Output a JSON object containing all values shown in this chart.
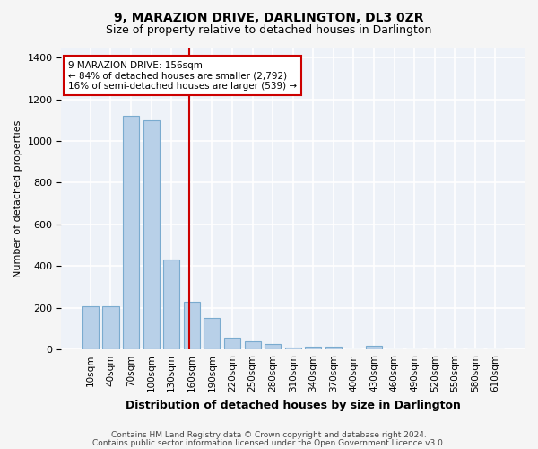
{
  "title": "9, MARAZION DRIVE, DARLINGTON, DL3 0ZR",
  "subtitle": "Size of property relative to detached houses in Darlington",
  "xlabel": "Distribution of detached houses by size in Darlington",
  "ylabel": "Number of detached properties",
  "bar_labels": [
    "10sqm",
    "40sqm",
    "70sqm",
    "100sqm",
    "130sqm",
    "160sqm",
    "190sqm",
    "220sqm",
    "250sqm",
    "280sqm",
    "310sqm",
    "340sqm",
    "370sqm",
    "400sqm",
    "430sqm",
    "460sqm",
    "490sqm",
    "520sqm",
    "550sqm",
    "580sqm",
    "610sqm"
  ],
  "bar_values": [
    207,
    207,
    1120,
    1100,
    430,
    230,
    150,
    58,
    40,
    25,
    10,
    15,
    15,
    0,
    20,
    0,
    0,
    0,
    0,
    0,
    0
  ],
  "bar_color": "#b8d0e8",
  "bar_edge_color": "#7aabcf",
  "property_line_label": "9 MARAZION DRIVE: 156sqm",
  "annotation_line1": "← 84% of detached houses are smaller (2,792)",
  "annotation_line2": "16% of semi-detached houses are larger (539) →",
  "annotation_box_color": "#ffffff",
  "annotation_box_edge_color": "#cc0000",
  "vline_color": "#cc0000",
  "vline_x": 4.87,
  "ylim": [
    0,
    1450
  ],
  "background_color": "#eef2f8",
  "grid_color": "#ffffff",
  "footnote1": "Contains HM Land Registry data © Crown copyright and database right 2024.",
  "footnote2": "Contains public sector information licensed under the Open Government Licence v3.0."
}
